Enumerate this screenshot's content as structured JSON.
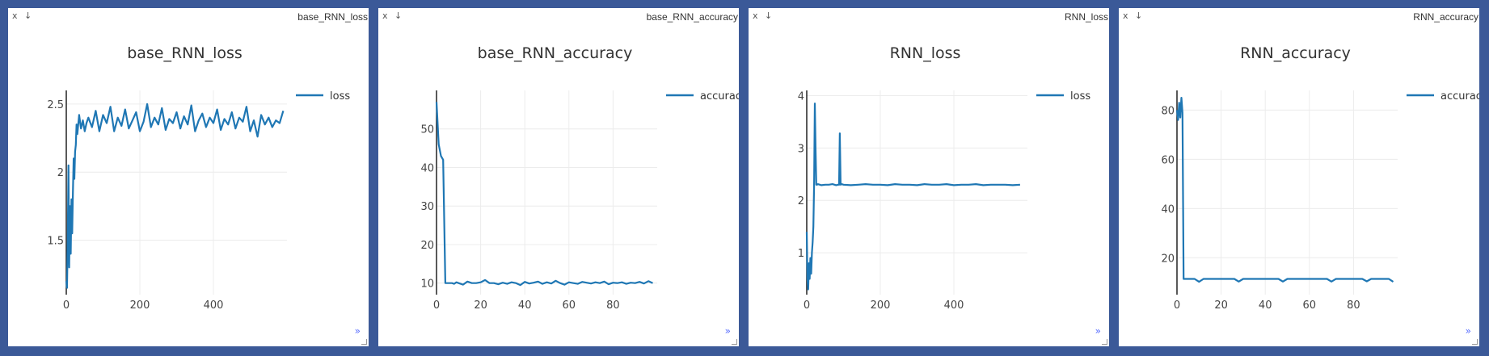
{
  "accent_color": "#3b5998",
  "panes": [
    {
      "window_title": "base_RNN_loss",
      "close_glyph": "x",
      "download_glyph": "↓",
      "expand_glyph": "»",
      "icons": [
        "close-icon",
        "download-icon",
        "expand-icon",
        "resize-handle-icon"
      ]
    },
    {
      "window_title": "base_RNN_accuracy",
      "close_glyph": "x",
      "download_glyph": "↓",
      "expand_glyph": "»",
      "icons": [
        "close-icon",
        "download-icon",
        "expand-icon",
        "resize-handle-icon"
      ]
    },
    {
      "window_title": "RNN_loss",
      "close_glyph": "x",
      "download_glyph": "↓",
      "expand_glyph": "»",
      "icons": [
        "close-icon",
        "download-icon",
        "expand-icon",
        "resize-handle-icon"
      ]
    },
    {
      "window_title": "RNN_accuracy",
      "close_glyph": "x",
      "download_glyph": "↓",
      "expand_glyph": "»",
      "icons": [
        "close-icon",
        "download-icon",
        "expand-icon",
        "resize-handle-icon"
      ]
    }
  ],
  "chart_data": [
    {
      "type": "line",
      "title": "base_RNN_loss",
      "xlabel": "",
      "ylabel": "",
      "xlim": [
        0,
        600
      ],
      "ylim": [
        1.1,
        2.6
      ],
      "xticks": [
        0,
        200,
        400
      ],
      "yticks": [
        1.5,
        2,
        2.5
      ],
      "ytick_labels": [
        "1.5",
        "2",
        "2.5"
      ],
      "grid": true,
      "legend_position": "top-right",
      "line_color": "#1f77b4",
      "series": [
        {
          "name": "loss",
          "x": [
            0,
            2,
            4,
            6,
            8,
            10,
            12,
            14,
            16,
            18,
            20,
            22,
            24,
            26,
            28,
            30,
            35,
            40,
            45,
            50,
            55,
            60,
            70,
            80,
            90,
            100,
            110,
            120,
            130,
            140,
            150,
            160,
            170,
            180,
            190,
            200,
            210,
            220,
            230,
            240,
            250,
            260,
            270,
            280,
            290,
            300,
            310,
            320,
            330,
            340,
            350,
            360,
            370,
            380,
            390,
            400,
            410,
            420,
            430,
            440,
            450,
            460,
            470,
            480,
            490,
            500,
            510,
            520,
            530,
            540,
            550,
            560,
            570,
            580,
            590
          ],
          "values": [
            1.2,
            1.15,
            1.5,
            2.05,
            1.3,
            1.75,
            1.4,
            1.8,
            1.55,
            1.85,
            2.1,
            1.95,
            2.15,
            2.2,
            2.35,
            2.28,
            2.42,
            2.32,
            2.38,
            2.3,
            2.36,
            2.4,
            2.33,
            2.45,
            2.3,
            2.42,
            2.36,
            2.48,
            2.3,
            2.4,
            2.34,
            2.46,
            2.32,
            2.38,
            2.44,
            2.3,
            2.37,
            2.5,
            2.33,
            2.4,
            2.35,
            2.47,
            2.31,
            2.39,
            2.36,
            2.44,
            2.32,
            2.41,
            2.35,
            2.49,
            2.3,
            2.38,
            2.43,
            2.33,
            2.4,
            2.36,
            2.46,
            2.31,
            2.39,
            2.35,
            2.44,
            2.32,
            2.4,
            2.37,
            2.48,
            2.3,
            2.38,
            2.26,
            2.42,
            2.35,
            2.4,
            2.33,
            2.38,
            2.36,
            2.45
          ]
        }
      ]
    },
    {
      "type": "line",
      "title": "base_RNN_accuracy",
      "xlabel": "",
      "ylabel": "",
      "xlim": [
        0,
        100
      ],
      "ylim": [
        7,
        60
      ],
      "xticks": [
        0,
        20,
        40,
        60,
        80
      ],
      "yticks": [
        10,
        20,
        30,
        40,
        50
      ],
      "ytick_labels": [
        "10",
        "20",
        "30",
        "40",
        "50"
      ],
      "grid": true,
      "legend_position": "top-right",
      "line_color": "#1f77b4",
      "series": [
        {
          "name": "accuracy",
          "x": [
            0,
            1,
            2,
            3,
            4,
            5,
            6,
            7,
            8,
            9,
            10,
            12,
            14,
            16,
            18,
            20,
            22,
            24,
            26,
            28,
            30,
            32,
            34,
            36,
            38,
            40,
            42,
            44,
            46,
            48,
            50,
            52,
            54,
            56,
            58,
            60,
            62,
            64,
            66,
            68,
            70,
            72,
            74,
            76,
            78,
            80,
            82,
            84,
            86,
            88,
            90,
            92,
            94,
            96,
            98
          ],
          "values": [
            57,
            46,
            43,
            42,
            10,
            10,
            10,
            10,
            9.8,
            10.2,
            10,
            9.6,
            10.4,
            10,
            10,
            10.2,
            10.8,
            10,
            10,
            9.7,
            10.1,
            9.8,
            10.2,
            10,
            9.5,
            10.3,
            9.9,
            10.1,
            10.4,
            9.8,
            10.2,
            9.9,
            10.6,
            10,
            9.6,
            10.2,
            10,
            9.8,
            10.3,
            10.1,
            9.9,
            10.2,
            10,
            10.4,
            9.7,
            10.1,
            10,
            10.2,
            9.8,
            10.1,
            10,
            10.3,
            9.9,
            10.5,
            10
          ]
        }
      ]
    },
    {
      "type": "line",
      "title": "RNN_loss",
      "xlabel": "",
      "ylabel": "",
      "xlim": [
        0,
        600
      ],
      "ylim": [
        0.2,
        4.1
      ],
      "xticks": [
        0,
        200,
        400
      ],
      "yticks": [
        1,
        2,
        3,
        4
      ],
      "ytick_labels": [
        "1",
        "2",
        "3",
        "4"
      ],
      "grid": true,
      "legend_position": "top-right",
      "line_color": "#1f77b4",
      "series": [
        {
          "name": "loss",
          "x": [
            0,
            2,
            4,
            6,
            8,
            10,
            12,
            14,
            16,
            18,
            20,
            22,
            24,
            26,
            28,
            30,
            40,
            50,
            60,
            70,
            80,
            85,
            88,
            90,
            92,
            95,
            100,
            120,
            140,
            160,
            180,
            200,
            220,
            240,
            260,
            280,
            300,
            320,
            340,
            360,
            380,
            400,
            420,
            440,
            460,
            480,
            500,
            520,
            540,
            560,
            580
          ],
          "values": [
            1.4,
            0.5,
            0.3,
            0.8,
            0.5,
            0.9,
            0.6,
            1.0,
            1.2,
            1.5,
            2.3,
            3.85,
            3.0,
            2.3,
            2.3,
            2.31,
            2.29,
            2.3,
            2.3,
            2.31,
            2.29,
            2.3,
            2.3,
            3.28,
            2.3,
            2.31,
            2.3,
            2.29,
            2.3,
            2.31,
            2.3,
            2.3,
            2.29,
            2.31,
            2.3,
            2.3,
            2.29,
            2.31,
            2.3,
            2.3,
            2.31,
            2.29,
            2.3,
            2.3,
            2.31,
            2.29,
            2.3,
            2.3,
            2.3,
            2.29,
            2.3
          ]
        }
      ]
    },
    {
      "type": "line",
      "title": "RNN_accuracy",
      "xlabel": "",
      "ylabel": "",
      "xlim": [
        0,
        100
      ],
      "ylim": [
        5,
        88
      ],
      "xticks": [
        0,
        20,
        40,
        60,
        80
      ],
      "yticks": [
        20,
        40,
        60,
        80
      ],
      "ytick_labels": [
        "20",
        "40",
        "60",
        "80"
      ],
      "grid": true,
      "legend_position": "top-right",
      "line_color": "#1f77b4",
      "series": [
        {
          "name": "accuracy",
          "x": [
            0,
            0.5,
            1,
            1.5,
            2,
            2.5,
            3,
            4,
            5,
            6,
            8,
            10,
            12,
            14,
            16,
            18,
            20,
            22,
            24,
            26,
            28,
            30,
            32,
            34,
            36,
            38,
            40,
            42,
            44,
            46,
            48,
            50,
            52,
            54,
            56,
            58,
            60,
            62,
            64,
            66,
            68,
            70,
            72,
            74,
            76,
            78,
            80,
            82,
            84,
            86,
            88,
            90,
            92,
            94,
            96,
            98
          ],
          "values": [
            80,
            76,
            83,
            77,
            85,
            79,
            11.4,
            11.4,
            11.4,
            11.4,
            11.4,
            10.2,
            11.4,
            11.4,
            11.4,
            11.4,
            11.4,
            11.4,
            11.4,
            11.4,
            10.3,
            11.4,
            11.4,
            11.4,
            11.4,
            11.4,
            11.4,
            11.4,
            11.4,
            11.4,
            10.3,
            11.4,
            11.4,
            11.4,
            11.4,
            11.4,
            11.4,
            11.4,
            11.4,
            11.4,
            11.4,
            10.3,
            11.4,
            11.4,
            11.4,
            11.4,
            11.4,
            11.4,
            11.4,
            10.4,
            11.4,
            11.4,
            11.4,
            11.4,
            11.4,
            10.2
          ]
        }
      ]
    }
  ]
}
